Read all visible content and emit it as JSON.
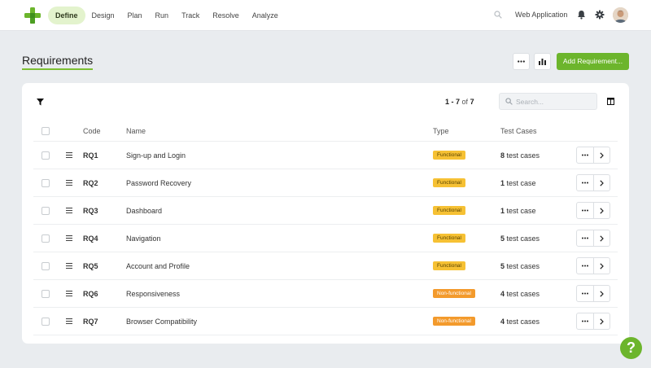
{
  "nav": {
    "items": [
      {
        "label": "Define",
        "active": true
      },
      {
        "label": "Design"
      },
      {
        "label": "Plan"
      },
      {
        "label": "Run"
      },
      {
        "label": "Track"
      },
      {
        "label": "Resolve"
      },
      {
        "label": "Analyze"
      }
    ],
    "project": "Web Application",
    "icons": [
      "search-icon",
      "bell-icon",
      "gear-icon"
    ]
  },
  "header": {
    "title": "Requirements",
    "add_button": "Add Requirement..."
  },
  "toolbar": {
    "count_range": "1 - 7",
    "count_of": "of",
    "count_total": "7",
    "search_placeholder": "Search..."
  },
  "table": {
    "columns": [
      "Code",
      "Name",
      "Type",
      "Test Cases"
    ],
    "rows": [
      {
        "code": "RQ1",
        "name": "Sign-up and Login",
        "type": "Functional",
        "tc_count": "8",
        "tc_label": "test cases"
      },
      {
        "code": "RQ2",
        "name": "Password Recovery",
        "type": "Functional",
        "tc_count": "1",
        "tc_label": "test case"
      },
      {
        "code": "RQ3",
        "name": "Dashboard",
        "type": "Functional",
        "tc_count": "1",
        "tc_label": "test case"
      },
      {
        "code": "RQ4",
        "name": "Navigation",
        "type": "Functional",
        "tc_count": "5",
        "tc_label": "test cases"
      },
      {
        "code": "RQ5",
        "name": "Account and Profile",
        "type": "Functional",
        "tc_count": "5",
        "tc_label": "test cases"
      },
      {
        "code": "RQ6",
        "name": "Responsiveness",
        "type": "Non-functional",
        "tc_count": "4",
        "tc_label": "test cases"
      },
      {
        "code": "RQ7",
        "name": "Browser Compatibility",
        "type": "Non-functional",
        "tc_count": "4",
        "tc_label": "test cases"
      }
    ]
  },
  "help_label": "?",
  "colors": {
    "accent": "#6cb52c",
    "functional_badge": "#f6c134",
    "nonfunctional_badge": "#f39a2c",
    "background": "#e9ecef"
  }
}
